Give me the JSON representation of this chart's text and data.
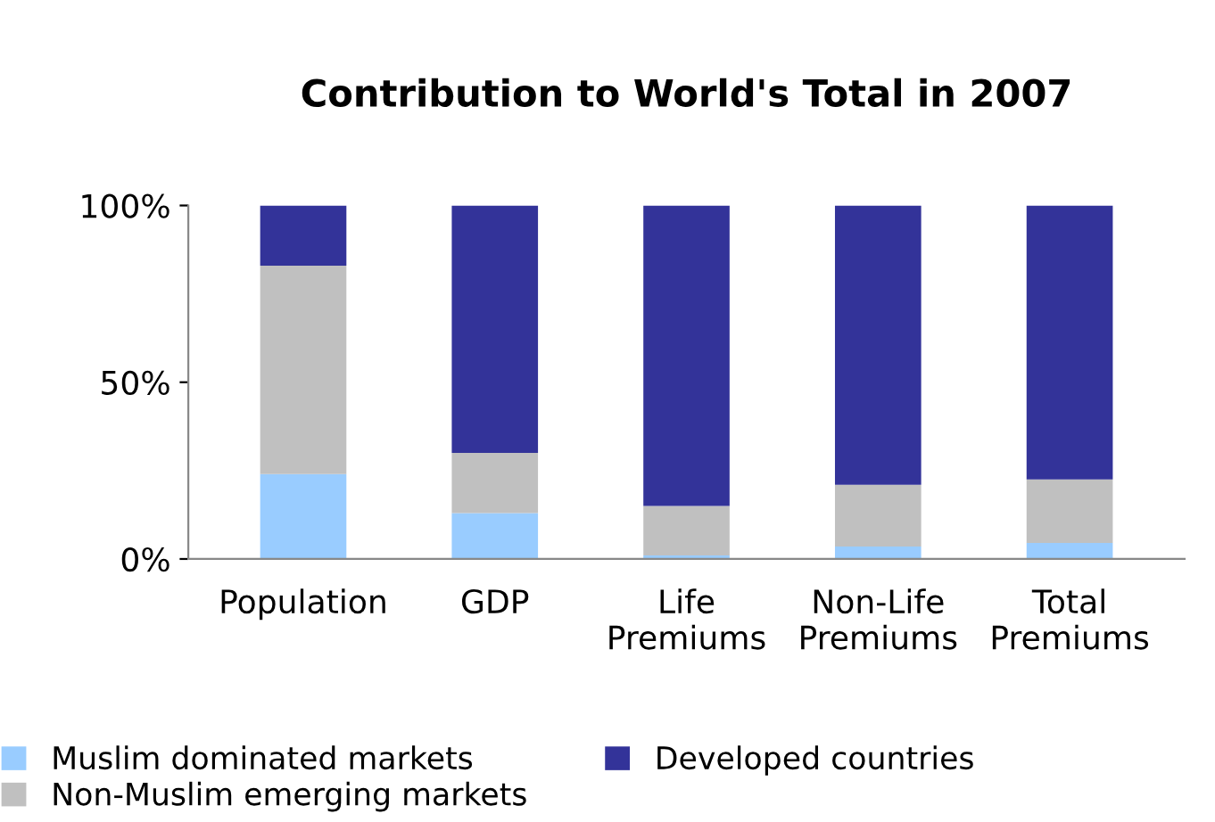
{
  "chart_data": {
    "type": "bar",
    "title": "Contribution to World's Total in 2007",
    "categories": [
      "Population",
      "GDP",
      "Life\nPremiums",
      "Non-Life\nPremiums",
      "Total\nPremiums"
    ],
    "stacked": true,
    "series": [
      {
        "name": "Muslim dominated markets",
        "color": "#99ccff",
        "values": [
          24,
          13,
          1,
          3.5,
          4.5
        ]
      },
      {
        "name": "Non-Muslim emerging markets",
        "color": "#c0c0c0",
        "values": [
          59,
          17,
          14,
          17.5,
          18
        ]
      },
      {
        "name": "Developed countries",
        "color": "#333399",
        "values": [
          17,
          70,
          85,
          79,
          77.5
        ]
      }
    ],
    "ylim": [
      0,
      100
    ],
    "yticks": [
      {
        "value": 0,
        "label": "0%"
      },
      {
        "value": 50,
        "label": "50%"
      },
      {
        "value": 100,
        "label": "100%"
      }
    ],
    "legend": "bottom"
  }
}
